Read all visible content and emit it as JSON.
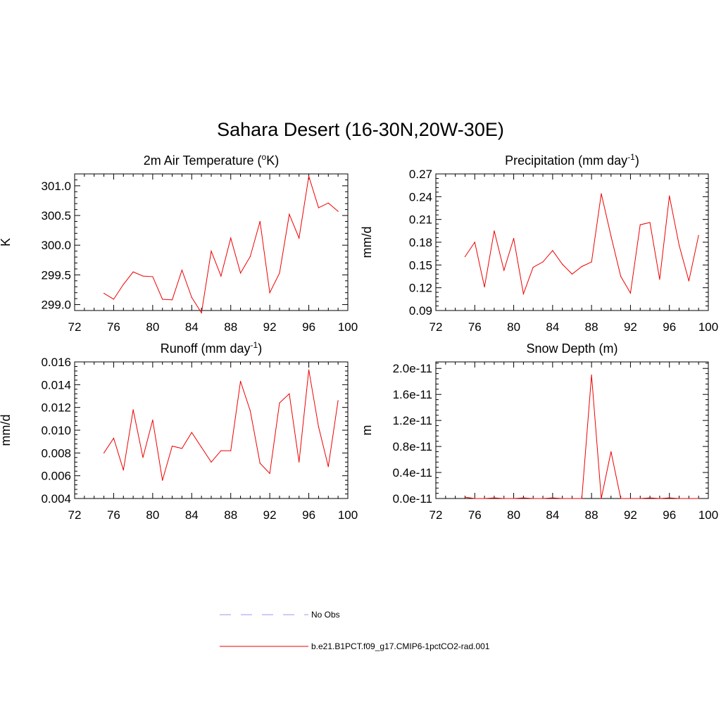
{
  "figure": {
    "title": "Sahara Desert (16-30N,20W-30E)"
  },
  "chart_data": [
    {
      "type": "line",
      "title": "2m Air Temperature (°K)",
      "title_base": "2m Air Temperature (",
      "title_sup": "o",
      "title_end": "K)",
      "ylabel": "K",
      "xlim": [
        72,
        100
      ],
      "ylim": [
        298.9,
        301.2
      ],
      "xticks": [
        "72",
        "76",
        "80",
        "84",
        "88",
        "92",
        "96",
        "100"
      ],
      "yticks": [
        "299.0",
        "299.5",
        "300.0",
        "300.5",
        "301.0"
      ],
      "x": [
        75,
        76,
        77,
        78,
        79,
        80,
        81,
        82,
        83,
        84,
        85,
        86,
        87,
        88,
        89,
        90,
        91,
        92,
        93,
        94,
        95,
        96,
        97,
        98,
        99
      ],
      "series": [
        {
          "values": [
            299.19,
            299.09,
            299.34,
            299.55,
            299.48,
            299.47,
            299.09,
            299.08,
            299.58,
            299.12,
            298.86,
            299.9,
            299.48,
            300.12,
            299.53,
            299.81,
            300.4,
            299.2,
            299.53,
            300.52,
            300.12,
            301.16,
            300.63,
            300.71,
            300.57
          ]
        }
      ]
    },
    {
      "type": "line",
      "title": "Precipitation (mm day-1)",
      "title_base": "Precipitation (mm day",
      "title_sup": "-1",
      "title_end": ")",
      "ylabel": "mm/d",
      "xlim": [
        72,
        100
      ],
      "ylim": [
        0.09,
        0.27
      ],
      "xticks": [
        "72",
        "76",
        "80",
        "84",
        "88",
        "92",
        "96",
        "100"
      ],
      "yticks": [
        "0.09",
        "0.12",
        "0.15",
        "0.18",
        "0.21",
        "0.24",
        "0.27"
      ],
      "x": [
        75,
        76,
        77,
        78,
        79,
        80,
        81,
        82,
        83,
        84,
        85,
        86,
        87,
        88,
        89,
        90,
        91,
        92,
        93,
        94,
        95,
        96,
        97,
        98,
        99
      ],
      "series": [
        {
          "values": [
            0.161,
            0.18,
            0.121,
            0.195,
            0.143,
            0.185,
            0.112,
            0.147,
            0.154,
            0.169,
            0.151,
            0.138,
            0.148,
            0.154,
            0.244,
            0.188,
            0.135,
            0.113,
            0.203,
            0.206,
            0.131,
            0.241,
            0.176,
            0.129,
            0.189
          ]
        }
      ]
    },
    {
      "type": "line",
      "title": "Runoff (mm day-1)",
      "title_base": "Runoff (mm day",
      "title_sup": "-1",
      "title_end": ")",
      "ylabel": "mm/d",
      "xlim": [
        72,
        100
      ],
      "ylim": [
        0.004,
        0.016
      ],
      "xticks": [
        "72",
        "76",
        "80",
        "84",
        "88",
        "92",
        "96",
        "100"
      ],
      "yticks": [
        "0.004",
        "0.006",
        "0.008",
        "0.010",
        "0.012",
        "0.014",
        "0.016"
      ],
      "x": [
        75,
        76,
        77,
        78,
        79,
        80,
        81,
        82,
        83,
        84,
        85,
        86,
        87,
        88,
        89,
        90,
        91,
        92,
        93,
        94,
        95,
        96,
        97,
        98,
        99
      ],
      "series": [
        {
          "values": [
            0.008,
            0.0093,
            0.0065,
            0.0118,
            0.0076,
            0.0109,
            0.0056,
            0.0086,
            0.0084,
            0.0098,
            0.0085,
            0.0072,
            0.0082,
            0.0082,
            0.0143,
            0.0117,
            0.0071,
            0.0062,
            0.0124,
            0.0132,
            0.0072,
            0.0153,
            0.0103,
            0.0068,
            0.0126
          ]
        }
      ]
    },
    {
      "type": "line",
      "title": "Snow Depth (m)",
      "title_base": "Snow Depth (m)",
      "title_sup": "",
      "title_end": "",
      "ylabel": "m",
      "xlim": [
        72,
        100
      ],
      "ylim": [
        0.0,
        2.1e-11
      ],
      "xticks": [
        "72",
        "76",
        "80",
        "84",
        "88",
        "92",
        "96",
        "100"
      ],
      "yticks": [
        "0.0e-11",
        "0.4e-11",
        "0.8e-11",
        "1.2e-11",
        "1.6e-11",
        "2.0e-11"
      ],
      "x": [
        75,
        76,
        77,
        78,
        79,
        80,
        81,
        82,
        83,
        84,
        85,
        86,
        87,
        88,
        89,
        90,
        91,
        92,
        93,
        94,
        95,
        96,
        97,
        98,
        99
      ],
      "series": [
        {
          "values": [
            2e-13,
            0,
            0,
            1e-13,
            0,
            0,
            1e-13,
            0,
            0,
            1e-13,
            0,
            0,
            0,
            1.9e-11,
            0,
            7.2e-12,
            0,
            0,
            0,
            1e-13,
            0,
            1e-13,
            0,
            0,
            0
          ]
        }
      ]
    }
  ],
  "legend": {
    "entries": [
      {
        "label": "No Obs",
        "color": "#9999ee",
        "style": "dashed"
      },
      {
        "label": "b.e21.B1PCT.f09_g17.CMIP6-1pctCO2-rad.001",
        "color": "#ee0000",
        "style": "solid"
      }
    ]
  },
  "colors": {
    "line": "#ee0000",
    "axis": "#000000"
  }
}
